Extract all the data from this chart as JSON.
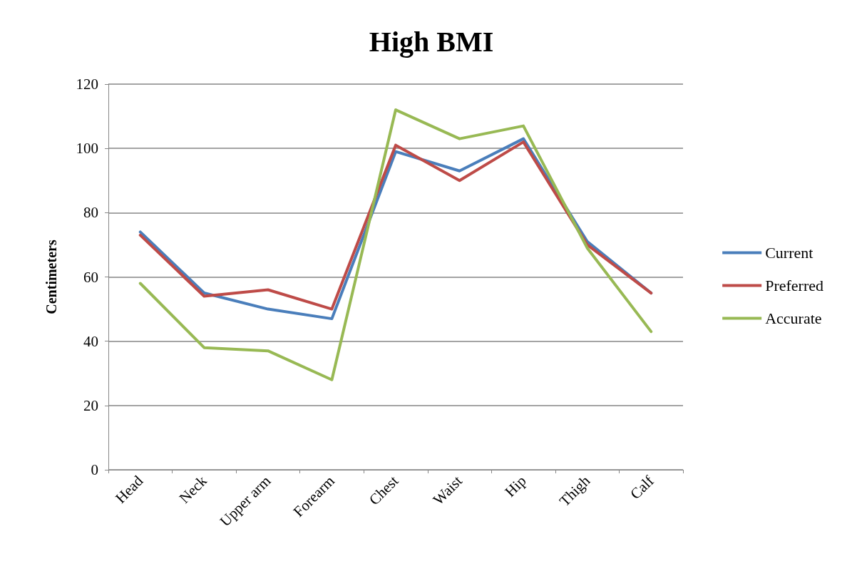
{
  "chart_data": {
    "type": "line",
    "title": "High BMI",
    "ylabel": "Centimeters",
    "categories": [
      "Head",
      "Neck",
      "Upper arm",
      "Forearm",
      "Chest",
      "Waist",
      "Hip",
      "Thigh",
      "Calf"
    ],
    "series": [
      {
        "name": "Current",
        "color": "#4a7ebb",
        "values": [
          74,
          55,
          50,
          47,
          99,
          93,
          103,
          71,
          55
        ]
      },
      {
        "name": "Preferred",
        "color": "#be4b48",
        "values": [
          73,
          54,
          56,
          50,
          101,
          90,
          102,
          70,
          55
        ]
      },
      {
        "name": "Accurate",
        "color": "#98b954",
        "values": [
          58,
          38,
          37,
          28,
          112,
          103,
          107,
          69,
          43
        ]
      }
    ],
    "ylim": [
      0,
      120
    ],
    "yticks": [
      0,
      20,
      40,
      60,
      80,
      100,
      120
    ],
    "grid": "y",
    "legend": "right",
    "marker": "none",
    "line_style": "solid"
  }
}
